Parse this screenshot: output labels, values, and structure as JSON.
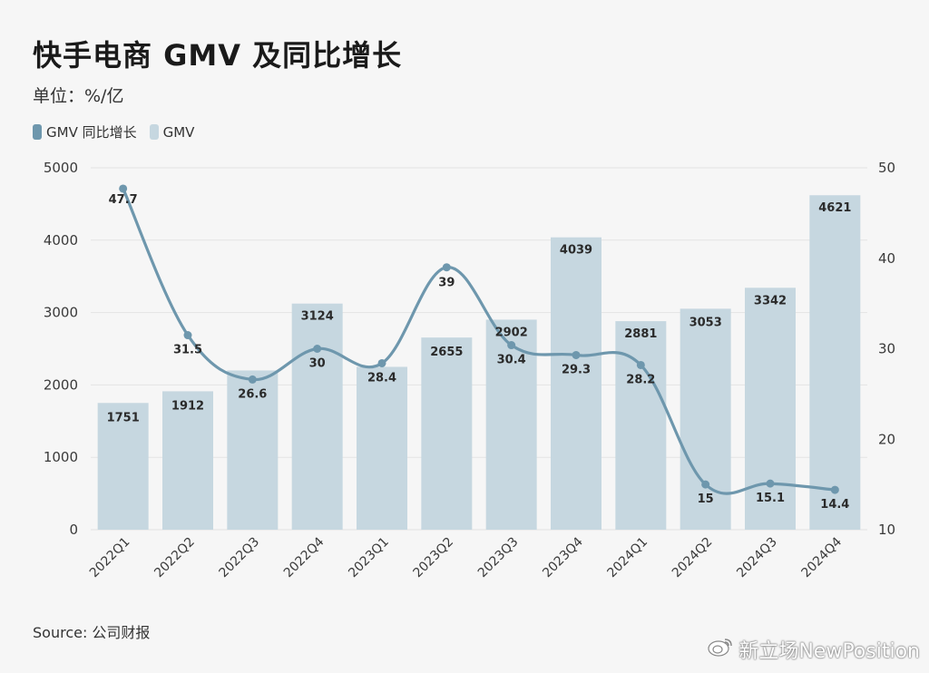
{
  "header": {
    "title": "快手电商 GMV 及同比增长",
    "unit": "单位：%/亿"
  },
  "legend": [
    {
      "label": "GMV 同比增长",
      "color": "#6e97ad"
    },
    {
      "label": "GMV",
      "color": "#c6d7e0"
    }
  ],
  "footer": {
    "source": "Source: 公司财报",
    "watermark": "新立场NewPosition",
    "watermark_icon": "weibo-icon"
  },
  "chart_data": {
    "type": "bar",
    "categories": [
      "2022Q1",
      "2022Q2",
      "2022Q3",
      "2022Q4",
      "2023Q1",
      "2023Q2",
      "2023Q3",
      "2023Q4",
      "2024Q1",
      "2024Q2",
      "2024Q3",
      "2024Q4"
    ],
    "series": [
      {
        "name": "GMV",
        "type": "bar",
        "axis": "left",
        "color": "#c6d7e0",
        "values": [
          1751,
          1912,
          2200,
          3124,
          2250,
          2655,
          2902,
          4039,
          2881,
          3053,
          3342,
          4621
        ],
        "labels": [
          "1751",
          "1912",
          "",
          "3124",
          "",
          "2655",
          "2902",
          "4039",
          "2881",
          "3053",
          "3342",
          "4621"
        ]
      },
      {
        "name": "GMV 同比增长",
        "type": "line",
        "axis": "right",
        "color": "#6e97ad",
        "values": [
          47.7,
          31.5,
          26.6,
          30,
          28.4,
          39,
          30.4,
          29.3,
          28.2,
          15,
          15.1,
          14.4
        ],
        "labels": [
          "47.7",
          "31.5",
          "26.6",
          "30",
          "28.4",
          "39",
          "30.4",
          "29.3",
          "28.2",
          "15",
          "15.1",
          "14.4"
        ]
      }
    ],
    "left_axis": {
      "min": 0,
      "max": 5000,
      "ticks": [
        0,
        1000,
        2000,
        3000,
        4000,
        5000
      ]
    },
    "right_axis": {
      "min": 10,
      "max": 50,
      "ticks": [
        10,
        20,
        30,
        40,
        50
      ]
    },
    "grid": true
  }
}
